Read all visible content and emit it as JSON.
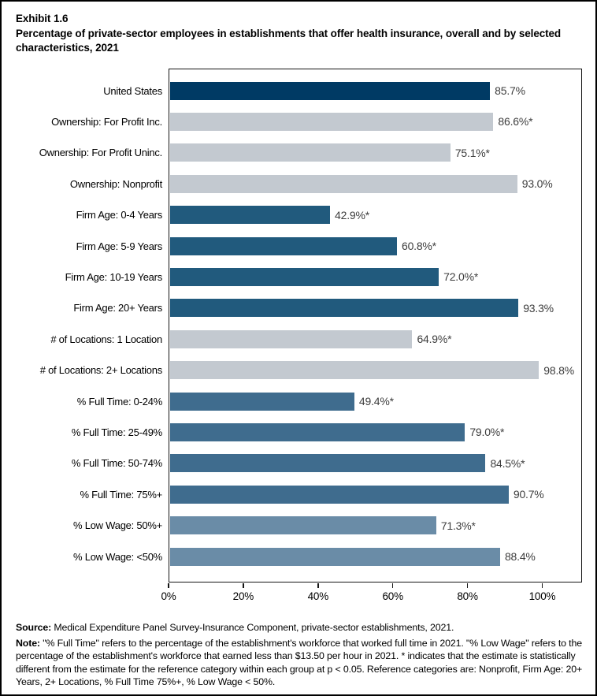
{
  "title": {
    "exhibit": "Exhibit 1.6",
    "text": "Percentage of private-sector employees in establishments that offer health insurance, overall and by selected characteristics, 2021"
  },
  "chart_data": {
    "type": "bar",
    "orientation": "horizontal",
    "title": "Percentage of private-sector employees in establishments that offer health insurance, overall and by selected characteristics, 2021",
    "xlabel": "",
    "ylabel": "",
    "xlim": [
      0,
      110
    ],
    "xticks": [
      {
        "value": 0,
        "label": "0%"
      },
      {
        "value": 20,
        "label": "20%"
      },
      {
        "value": 40,
        "label": "40%"
      },
      {
        "value": 60,
        "label": "60%"
      },
      {
        "value": 80,
        "label": "80%"
      },
      {
        "value": 100,
        "label": "100%"
      }
    ],
    "palette": {
      "navy": "#003a64",
      "gray": "#c3c9d0",
      "blue_dark": "#215a7d",
      "blue_medium": "#3f6c8e",
      "blue_light": "#6a8ca7"
    },
    "bars": [
      {
        "label": "United States",
        "value": 85.7,
        "display": "85.7%",
        "color": "#003a64"
      },
      {
        "label": "Ownership: For Profit Inc.",
        "value": 86.6,
        "display": "86.6%*",
        "color": "#c3c9d0"
      },
      {
        "label": "Ownership: For Profit Uninc.",
        "value": 75.1,
        "display": "75.1%*",
        "color": "#c3c9d0"
      },
      {
        "label": "Ownership: Nonprofit",
        "value": 93.0,
        "display": "93.0%",
        "color": "#c3c9d0"
      },
      {
        "label": "Firm Age: 0-4 Years",
        "value": 42.9,
        "display": "42.9%*",
        "color": "#215a7d"
      },
      {
        "label": "Firm Age: 5-9 Years",
        "value": 60.8,
        "display": "60.8%*",
        "color": "#215a7d"
      },
      {
        "label": "Firm Age: 10-19 Years",
        "value": 72.0,
        "display": "72.0%*",
        "color": "#215a7d"
      },
      {
        "label": "Firm Age: 20+ Years",
        "value": 93.3,
        "display": "93.3%",
        "color": "#215a7d"
      },
      {
        "label": "# of Locations: 1 Location",
        "value": 64.9,
        "display": "64.9%*",
        "color": "#c3c9d0"
      },
      {
        "label": "# of Locations: 2+ Locations",
        "value": 98.8,
        "display": "98.8%",
        "color": "#c3c9d0"
      },
      {
        "label": "% Full Time: 0-24%",
        "value": 49.4,
        "display": "49.4%*",
        "color": "#3f6c8e"
      },
      {
        "label": "% Full Time: 25-49%",
        "value": 79.0,
        "display": "79.0%*",
        "color": "#3f6c8e"
      },
      {
        "label": "% Full Time: 50-74%",
        "value": 84.5,
        "display": "84.5%*",
        "color": "#3f6c8e"
      },
      {
        "label": "% Full Time: 75%+",
        "value": 90.7,
        "display": "90.7%",
        "color": "#3f6c8e"
      },
      {
        "label": "% Low Wage: 50%+",
        "value": 71.3,
        "display": "71.3%*",
        "color": "#6a8ca7"
      },
      {
        "label": "% Low Wage: <50%",
        "value": 88.4,
        "display": "88.4%",
        "color": "#6a8ca7"
      }
    ],
    "grid": false,
    "legend": "none"
  },
  "footer": {
    "source_label": "Source:",
    "source_text": "Medical Expenditure Panel Survey-Insurance Component, private-sector establishments, 2021.",
    "note_label": "Note:",
    "note_text": "\"% Full Time\" refers to the percentage of the establishment's workforce that worked full time in 2021. \"% Low Wage\" refers to the percentage of the establishment's workforce that earned less than $13.50 per hour in 2021. * indicates that the estimate is statistically different from the estimate for the reference category within each group at p < 0.05.  Reference categories are: Nonprofit, Firm Age: 20+ Years, 2+ Locations, % Full Time 75%+, % Low Wage < 50%."
  }
}
